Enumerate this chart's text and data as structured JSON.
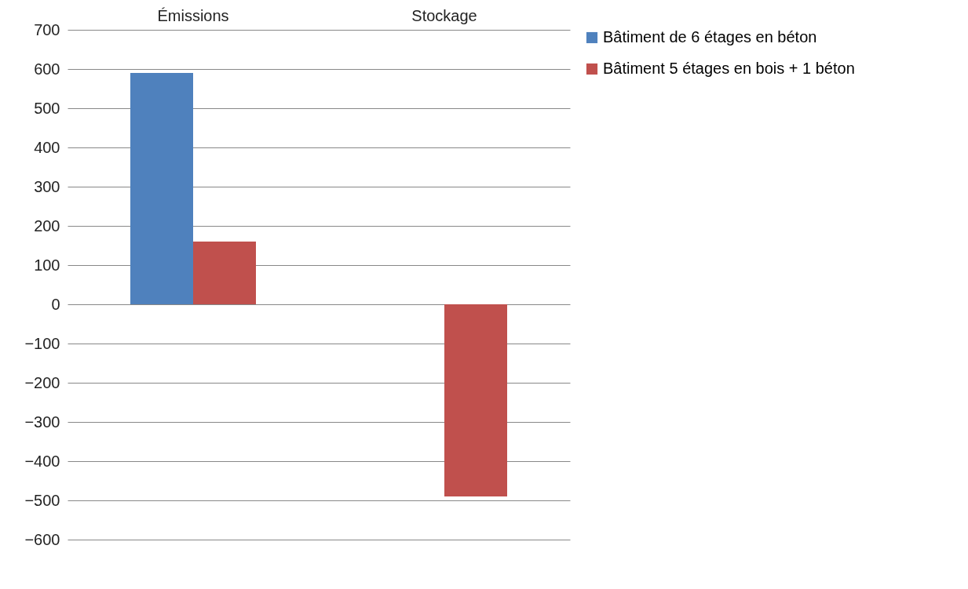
{
  "chart_data": {
    "type": "bar",
    "categories": [
      "Émissions",
      "Stockage"
    ],
    "series": [
      {
        "name": "Bâtiment de 6 étages en béton",
        "color": "#4f81bd",
        "values": [
          590,
          null
        ]
      },
      {
        "name": "Bâtiment 5 étages en bois + 1 béton",
        "color": "#c0504d",
        "values": [
          160,
          -490
        ]
      }
    ],
    "ylim": [
      -600,
      700
    ],
    "yticks": [
      -600,
      -500,
      -400,
      -300,
      -200,
      -100,
      0,
      100,
      200,
      300,
      400,
      500,
      600,
      700
    ],
    "grid": "y",
    "legend": "right"
  }
}
